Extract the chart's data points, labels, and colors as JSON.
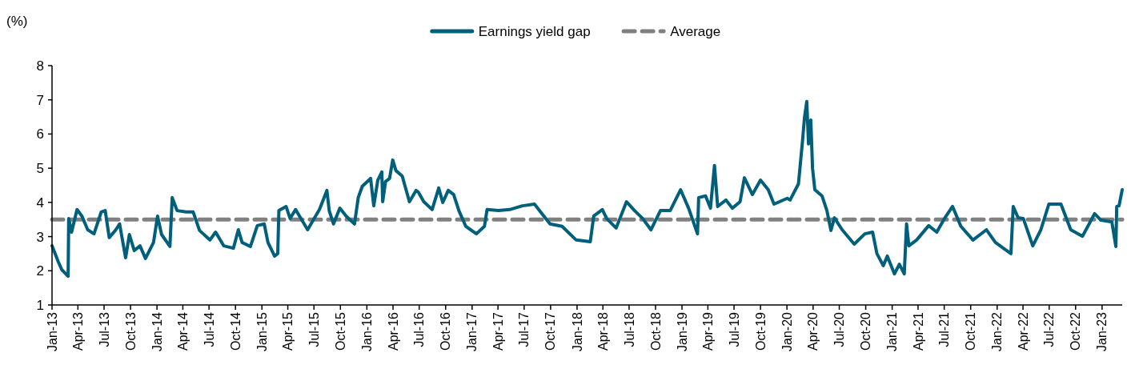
{
  "chart_data": {
    "type": "line",
    "ylabel": "(%)",
    "legend": "top",
    "line_style": "solid",
    "marker": "none",
    "xlim": [
      "2013-01-01",
      "2023-03-12"
    ],
    "ylim": [
      1,
      8
    ],
    "yticks": [
      1,
      2,
      3,
      4,
      5,
      6,
      7,
      8
    ],
    "xticks": [
      {
        "value": "2013-01-01",
        "label": "Jan-13"
      },
      {
        "value": "2013-04-01",
        "label": "Apr-13"
      },
      {
        "value": "2013-07-01",
        "label": "Jul-13"
      },
      {
        "value": "2013-10-01",
        "label": "Oct-13"
      },
      {
        "value": "2014-01-01",
        "label": "Jan-14"
      },
      {
        "value": "2014-04-01",
        "label": "Apr-14"
      },
      {
        "value": "2014-07-01",
        "label": "Jul-14"
      },
      {
        "value": "2014-10-01",
        "label": "Oct-14"
      },
      {
        "value": "2015-01-01",
        "label": "Jan-15"
      },
      {
        "value": "2015-04-01",
        "label": "Apr-15"
      },
      {
        "value": "2015-07-01",
        "label": "Jul-15"
      },
      {
        "value": "2015-10-01",
        "label": "Oct-15"
      },
      {
        "value": "2016-01-01",
        "label": "Jan-16"
      },
      {
        "value": "2016-04-01",
        "label": "Apr-16"
      },
      {
        "value": "2016-07-01",
        "label": "Jul-16"
      },
      {
        "value": "2016-10-01",
        "label": "Oct-16"
      },
      {
        "value": "2017-01-01",
        "label": "Jan-17"
      },
      {
        "value": "2017-04-01",
        "label": "Apr-17"
      },
      {
        "value": "2017-07-01",
        "label": "Jul-17"
      },
      {
        "value": "2017-10-01",
        "label": "Oct-17"
      },
      {
        "value": "2018-01-01",
        "label": "Jan-18"
      },
      {
        "value": "2018-04-01",
        "label": "Apr-18"
      },
      {
        "value": "2018-07-01",
        "label": "Jul-18"
      },
      {
        "value": "2018-10-01",
        "label": "Oct-18"
      },
      {
        "value": "2019-01-01",
        "label": "Jan-19"
      },
      {
        "value": "2019-04-01",
        "label": "Apr-19"
      },
      {
        "value": "2019-07-01",
        "label": "Jul-19"
      },
      {
        "value": "2019-10-01",
        "label": "Oct-19"
      },
      {
        "value": "2020-01-01",
        "label": "Jan-20"
      },
      {
        "value": "2020-04-01",
        "label": "Apr-20"
      },
      {
        "value": "2020-07-01",
        "label": "Jul-20"
      },
      {
        "value": "2020-10-01",
        "label": "Oct-20"
      },
      {
        "value": "2021-01-01",
        "label": "Jan-21"
      },
      {
        "value": "2021-04-01",
        "label": "Apr-21"
      },
      {
        "value": "2021-07-01",
        "label": "Jul-21"
      },
      {
        "value": "2021-10-01",
        "label": "Oct-21"
      },
      {
        "value": "2022-01-01",
        "label": "Jan-22"
      },
      {
        "value": "2022-04-01",
        "label": "Apr-22"
      },
      {
        "value": "2022-07-01",
        "label": "Jul-22"
      },
      {
        "value": "2022-10-01",
        "label": "Oct-22"
      },
      {
        "value": "2023-01-01",
        "label": "Jan-23"
      }
    ],
    "ref_lines": [
      {
        "axis": "y",
        "value": 3.5,
        "label": "Average",
        "color": "#808080",
        "line_style": "dashed"
      }
    ],
    "series": [
      {
        "name": "Earnings yield gap",
        "color": "#005f7a",
        "x": [
          "2013-01-01",
          "2013-01-23",
          "2013-02-04",
          "2013-02-26",
          "2013-02-28",
          "2013-03-10",
          "2013-03-29",
          "2013-04-15",
          "2013-05-05",
          "2013-05-27",
          "2013-06-21",
          "2013-07-05",
          "2013-07-19",
          "2013-08-11",
          "2013-08-24",
          "2013-09-14",
          "2013-09-27",
          "2013-10-14",
          "2013-11-03",
          "2013-11-22",
          "2013-12-20",
          "2014-01-03",
          "2014-01-17",
          "2014-02-15",
          "2014-02-23",
          "2014-03-12",
          "2014-04-12",
          "2014-05-07",
          "2014-05-29",
          "2014-07-04",
          "2014-07-24",
          "2014-08-21",
          "2014-09-24",
          "2014-10-11",
          "2014-10-24",
          "2014-11-22",
          "2014-12-16",
          "2015-01-09",
          "2015-01-22",
          "2015-02-14",
          "2015-02-25",
          "2015-03-01",
          "2015-03-26",
          "2015-04-09",
          "2015-04-28",
          "2015-06-09",
          "2015-07-20",
          "2015-08-15",
          "2015-08-23",
          "2015-09-07",
          "2015-09-29",
          "2015-10-21",
          "2015-11-19",
          "2015-12-02",
          "2015-12-16",
          "2016-01-14",
          "2016-01-25",
          "2016-02-08",
          "2016-02-22",
          "2016-02-25",
          "2016-03-06",
          "2016-03-20",
          "2016-03-31",
          "2016-04-11",
          "2016-05-03",
          "2016-05-28",
          "2016-06-20",
          "2016-06-28",
          "2016-07-17",
          "2016-08-15",
          "2016-09-07",
          "2016-09-21",
          "2016-10-10",
          "2016-10-29",
          "2016-11-16",
          "2016-12-10",
          "2017-01-16",
          "2017-02-13",
          "2017-02-22",
          "2017-04-03",
          "2017-05-12",
          "2017-06-25",
          "2017-08-06",
          "2017-09-01",
          "2017-09-29",
          "2017-11-10",
          "2017-12-29",
          "2018-02-16",
          "2018-02-28",
          "2018-03-30",
          "2018-04-14",
          "2018-05-17",
          "2018-06-22",
          "2018-07-20",
          "2018-08-17",
          "2018-09-15",
          "2018-10-18",
          "2018-11-21",
          "2018-12-27",
          "2019-01-24",
          "2019-02-24",
          "2019-02-28",
          "2019-03-24",
          "2019-04-10",
          "2019-04-24",
          "2019-05-05",
          "2019-06-03",
          "2019-06-25",
          "2019-07-22",
          "2019-08-06",
          "2019-09-03",
          "2019-10-01",
          "2019-10-28",
          "2019-11-17",
          "2020-01-02",
          "2020-01-12",
          "2020-02-10",
          "2020-02-24",
          "2020-03-02",
          "2020-03-10",
          "2020-03-16",
          "2020-03-24",
          "2020-03-30",
          "2020-04-07",
          "2020-05-02",
          "2020-05-19",
          "2020-06-02",
          "2020-06-14",
          "2020-07-11",
          "2020-08-22",
          "2020-09-28",
          "2020-10-25",
          "2020-11-09",
          "2020-12-01",
          "2020-12-15",
          "2021-01-09",
          "2021-01-26",
          "2021-02-12",
          "2021-02-20",
          "2021-02-28",
          "2021-03-27",
          "2021-05-08",
          "2021-06-05",
          "2021-07-02",
          "2021-07-30",
          "2021-08-28",
          "2021-10-09",
          "2021-11-25",
          "2021-12-26",
          "2022-02-18",
          "2022-02-26",
          "2022-03-15",
          "2022-04-02",
          "2022-05-05",
          "2022-06-02",
          "2022-06-30",
          "2022-08-11",
          "2022-09-14",
          "2022-10-25",
          "2022-12-06",
          "2022-12-28",
          "2023-02-04",
          "2023-02-18",
          "2023-02-21",
          "2023-03-01",
          "2023-03-12"
        ],
        "values": [
          2.73,
          2.26,
          2.03,
          1.84,
          3.53,
          3.13,
          3.79,
          3.6,
          3.2,
          3.08,
          3.72,
          3.76,
          2.97,
          3.2,
          3.37,
          2.38,
          3.06,
          2.59,
          2.73,
          2.36,
          2.83,
          3.6,
          3.06,
          2.71,
          4.14,
          3.76,
          3.72,
          3.72,
          3.18,
          2.9,
          3.13,
          2.73,
          2.66,
          3.2,
          2.83,
          2.71,
          3.32,
          3.37,
          2.83,
          2.43,
          2.5,
          3.76,
          3.88,
          3.53,
          3.79,
          3.2,
          3.79,
          4.35,
          3.76,
          3.37,
          3.83,
          3.6,
          3.37,
          4.14,
          4.47,
          4.7,
          3.9,
          4.65,
          4.89,
          4.02,
          4.61,
          4.7,
          5.24,
          4.93,
          4.77,
          4.02,
          4.35,
          4.3,
          4.02,
          3.79,
          4.42,
          4.0,
          4.35,
          4.23,
          3.76,
          3.3,
          3.08,
          3.3,
          3.79,
          3.76,
          3.79,
          3.9,
          3.95,
          3.67,
          3.37,
          3.3,
          2.9,
          2.85,
          3.6,
          3.79,
          3.53,
          3.25,
          4.02,
          3.76,
          3.53,
          3.2,
          3.76,
          3.76,
          4.37,
          3.83,
          3.08,
          4.14,
          4.19,
          3.83,
          5.08,
          3.88,
          4.07,
          3.83,
          4.02,
          4.72,
          4.23,
          4.65,
          4.37,
          3.95,
          4.12,
          4.07,
          4.54,
          5.78,
          6.48,
          6.95,
          5.71,
          6.41,
          5.0,
          4.37,
          4.19,
          3.76,
          3.18,
          3.55,
          3.2,
          2.78,
          3.08,
          3.13,
          2.5,
          2.15,
          2.43,
          1.91,
          2.19,
          1.91,
          3.37,
          2.73,
          2.9,
          3.32,
          3.13,
          3.53,
          3.88,
          3.3,
          2.9,
          3.2,
          2.83,
          2.5,
          3.88,
          3.55,
          3.53,
          2.73,
          3.2,
          3.95,
          3.95,
          3.2,
          3.01,
          3.67,
          3.48,
          3.43,
          2.71,
          3.88,
          3.9,
          4.37
        ]
      }
    ]
  }
}
